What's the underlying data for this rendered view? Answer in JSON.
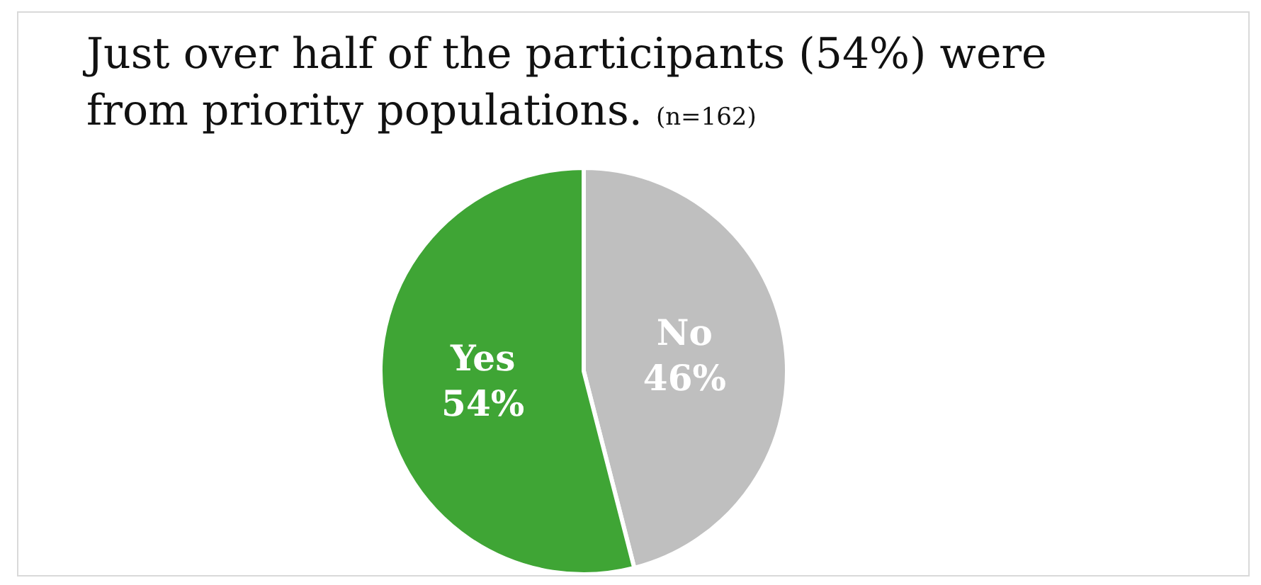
{
  "chart_data": {
    "type": "pie",
    "title": "Just over half of the participants (54%) were from priority populations.",
    "subtitle": "(n=162)",
    "categories": [
      "No",
      "Yes"
    ],
    "values": [
      46,
      54
    ],
    "colors": [
      "#bfbfbf",
      "#3fa535"
    ],
    "value_labels": [
      "46%",
      "54%"
    ],
    "legend": false
  }
}
